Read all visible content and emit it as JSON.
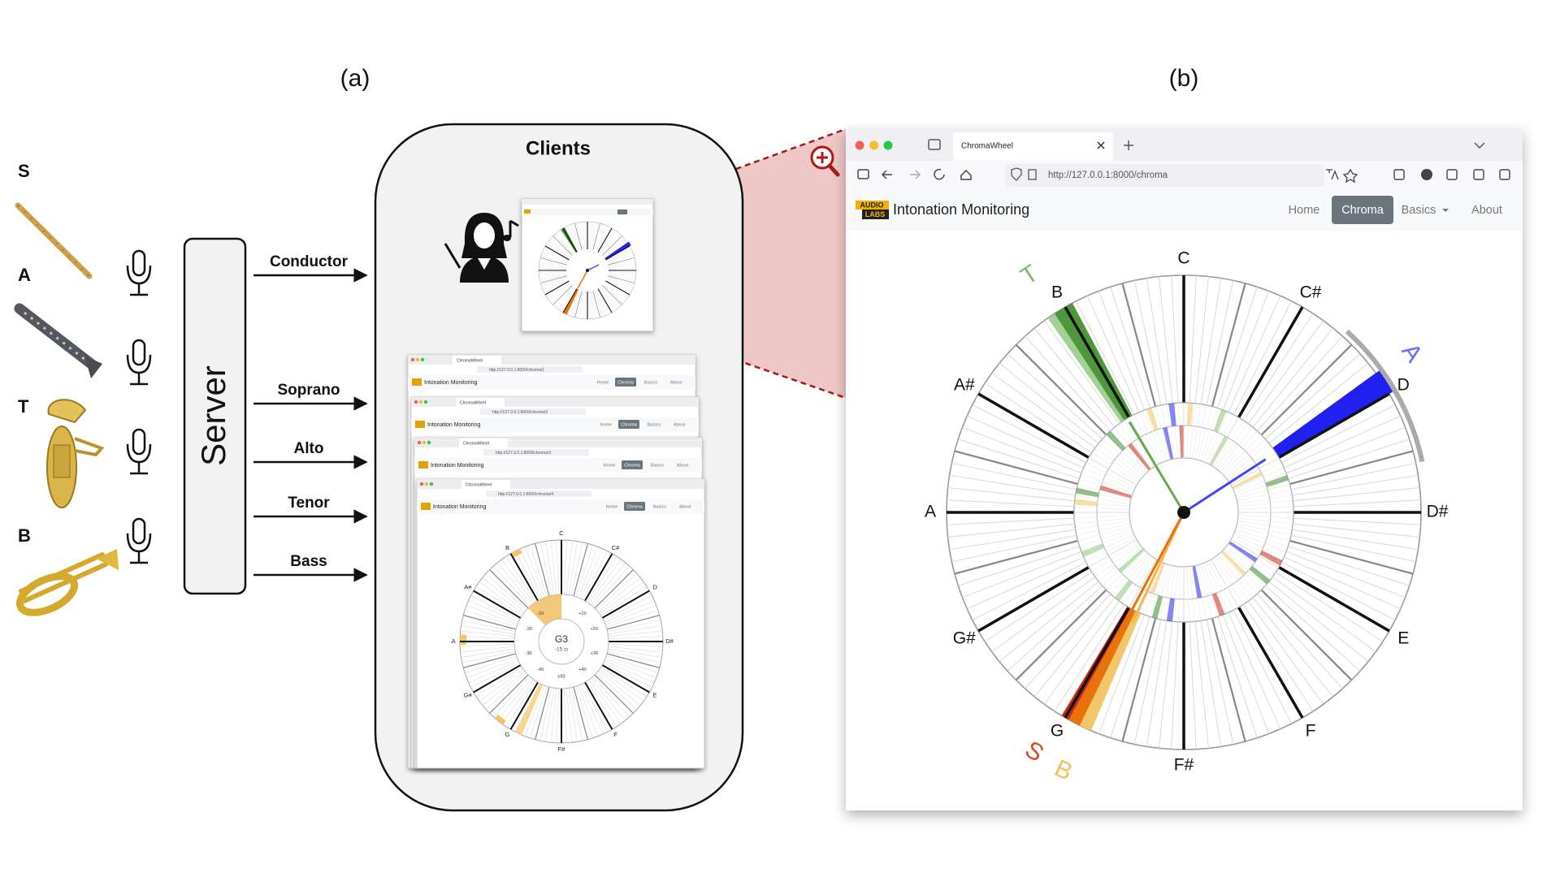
{
  "panels": {
    "a": "(a)",
    "b": "(b)"
  },
  "voices": [
    "S",
    "A",
    "T",
    "B"
  ],
  "server": "Server",
  "clients": "Clients",
  "streams": [
    "Conductor",
    "Soprano",
    "Alto",
    "Tenor",
    "Bass"
  ],
  "browser": {
    "tab": "ChromaWheel",
    "url": "http://127.0.0.1:8000/chroma",
    "logo": [
      "AUDIO",
      "LABS"
    ],
    "app_title": "Intonation Monitoring",
    "nav": [
      "Home",
      "Chroma",
      "Basics",
      "About"
    ]
  },
  "wheel": {
    "notes": [
      "C",
      "C#",
      "D",
      "D#",
      "E",
      "F",
      "F#",
      "G",
      "G#",
      "A",
      "A#",
      "B"
    ],
    "voice_markers": [
      "T",
      "A",
      "S",
      "B"
    ]
  },
  "client_screens": {
    "urls": [
      "http://127.0.0.1:8000/chroma/1",
      "http://127.0.0.1:8000/chroma/2",
      "http://127.0.0.1:8000/chroma/3",
      "http://127.0.0.1:8000/chroma/4"
    ],
    "note": "G3",
    "deviation": "-15 ct",
    "cents": [
      "-10",
      "+10",
      "-20",
      "+20",
      "-30",
      "+30",
      "-40",
      "+40",
      "±50"
    ]
  }
}
